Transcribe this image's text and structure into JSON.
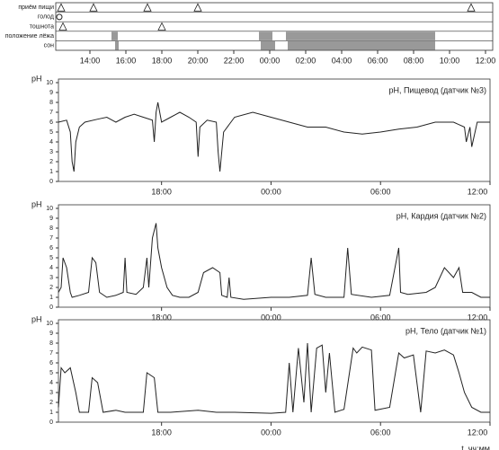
{
  "chart_data": [
    {
      "type": "timeline",
      "xlim": [
        12.1,
        36
      ],
      "xticks": [
        {
          "value": 14,
          "label": "14:00"
        },
        {
          "value": 16,
          "label": "16:00"
        },
        {
          "value": 18,
          "label": "18:00"
        },
        {
          "value": 20,
          "label": "20:00"
        },
        {
          "value": 22,
          "label": "22:00"
        },
        {
          "value": 24,
          "label": "00:00"
        },
        {
          "value": 26,
          "label": "02:00"
        },
        {
          "value": 28,
          "label": "04:00"
        },
        {
          "value": 30,
          "label": "06:00"
        },
        {
          "value": 32,
          "label": "08:00"
        },
        {
          "value": 34,
          "label": "10:00"
        },
        {
          "value": 36,
          "label": "12:00"
        }
      ],
      "series": [
        {
          "name": "приём пищи",
          "marker": "triangle",
          "x": [
            12.4,
            14.2,
            17.2,
            20.0,
            35.2
          ]
        },
        {
          "name": "голод",
          "marker": "circle",
          "x": [
            12.3
          ]
        },
        {
          "name": "тошнота",
          "marker": "triangle",
          "x": [
            12.5,
            18.0
          ]
        },
        {
          "name": "положение лёжа",
          "color": "#999999",
          "spans": [
            [
              15.2,
              15.55
            ],
            [
              23.4,
              24.15
            ],
            [
              24.9,
              33.2
            ]
          ]
        },
        {
          "name": "сон",
          "color": "#999999",
          "spans": [
            [
              15.4,
              15.6
            ],
            [
              23.5,
              24.3
            ],
            [
              25.0,
              33.2
            ]
          ]
        }
      ]
    },
    {
      "type": "line",
      "title": "pH, Пищевод (датчик №3)",
      "ylabel": "pH",
      "color": "#222222",
      "xlim": [
        12.35,
        36
      ],
      "ylim": [
        0,
        10
      ],
      "xticks": [
        {
          "value": 18,
          "label": "18:00"
        },
        {
          "value": 24,
          "label": "00:00"
        },
        {
          "value": 30,
          "label": "06:00"
        },
        {
          "value": 36,
          "label": "12:00"
        }
      ],
      "yticks": [
        0,
        1,
        2,
        3,
        4,
        5,
        6,
        7,
        8,
        9,
        10
      ],
      "x": [
        12.35,
        12.8,
        13.0,
        13.1,
        13.2,
        13.3,
        13.5,
        13.8,
        14.5,
        15.0,
        15.5,
        16.0,
        16.5,
        17.0,
        17.5,
        17.6,
        17.7,
        17.8,
        18.0,
        18.5,
        19.0,
        19.5,
        19.9,
        20.0,
        20.1,
        20.5,
        21.0,
        21.1,
        21.2,
        21.4,
        22.0,
        23.0,
        24.0,
        25.0,
        26.0,
        27.0,
        28.0,
        29.0,
        30.0,
        31.0,
        32.0,
        33.0,
        34.0,
        34.6,
        34.7,
        34.9,
        35.0,
        35.3,
        36.0
      ],
      "values": [
        6,
        6.2,
        5,
        2,
        1,
        4,
        5.5,
        6,
        6.3,
        6.5,
        6,
        6.5,
        6.8,
        6.5,
        6.2,
        4,
        7,
        8,
        6,
        6.5,
        7,
        6.5,
        6,
        2.5,
        5.5,
        6.2,
        6,
        3,
        1,
        5,
        6.5,
        7,
        6.5,
        6,
        5.5,
        5.5,
        5,
        4.8,
        5,
        5.3,
        5.5,
        6,
        6,
        5.5,
        4,
        5.5,
        3.5,
        6,
        6
      ]
    },
    {
      "type": "line",
      "title": "pH, Кардия (датчик №2)",
      "ylabel": "pH",
      "color": "#222222",
      "xlim": [
        12.35,
        36
      ],
      "ylim": [
        0,
        10
      ],
      "xticks": [
        {
          "value": 18,
          "label": "18:00"
        },
        {
          "value": 24,
          "label": "00:00"
        },
        {
          "value": 30,
          "label": "06:00"
        },
        {
          "value": 36,
          "label": "12:00"
        }
      ],
      "yticks": [
        0,
        1,
        2,
        3,
        4,
        5,
        6,
        7,
        8,
        9,
        10
      ],
      "x": [
        12.35,
        12.5,
        12.6,
        12.8,
        13.0,
        13.1,
        13.5,
        14.0,
        14.2,
        14.4,
        14.6,
        15.0,
        15.5,
        15.9,
        16.0,
        16.1,
        16.6,
        17.0,
        17.2,
        17.3,
        17.5,
        17.7,
        17.8,
        18.0,
        18.3,
        18.6,
        19.0,
        19.5,
        20.0,
        20.3,
        20.8,
        21.2,
        21.3,
        21.6,
        21.7,
        21.8,
        22.5,
        24.0,
        25.0,
        26.0,
        26.2,
        26.4,
        27.0,
        28.0,
        28.2,
        28.4,
        29.5,
        30.5,
        31.0,
        31.1,
        31.5,
        32.5,
        33.0,
        33.5,
        34.0,
        34.3,
        34.5,
        35.0,
        35.5,
        36.0
      ],
      "values": [
        1.5,
        2,
        5,
        4,
        1.5,
        1,
        1.2,
        1.5,
        5,
        4.5,
        1.5,
        1,
        1.2,
        1.5,
        5,
        1.5,
        1.3,
        2,
        5,
        2,
        7,
        8.5,
        6,
        4,
        2,
        1.2,
        1,
        1,
        1.5,
        3.5,
        4,
        3.5,
        1.2,
        1,
        3,
        1,
        0.8,
        1,
        1,
        1.2,
        5,
        1.3,
        1,
        1,
        6,
        1.3,
        1,
        1.2,
        6,
        1.5,
        1.3,
        1.5,
        2,
        4,
        3,
        4,
        1.5,
        1.5,
        1,
        1
      ]
    },
    {
      "type": "line",
      "title": "pH, Тело (датчик №1)",
      "ylabel": "pH",
      "xlabel": "t, чч:мм",
      "color": "#222222",
      "xlim": [
        12.35,
        36
      ],
      "ylim": [
        0,
        10
      ],
      "xticks": [
        {
          "value": 18,
          "label": "18:00"
        },
        {
          "value": 24,
          "label": "00:00"
        },
        {
          "value": 30,
          "label": "06:00"
        },
        {
          "value": 36,
          "label": "12:00"
        }
      ],
      "yticks": [
        0,
        1,
        2,
        3,
        4,
        5,
        6,
        7,
        8,
        9,
        10
      ],
      "x": [
        12.35,
        12.5,
        12.7,
        13.0,
        13.3,
        13.5,
        14.0,
        14.2,
        14.5,
        14.8,
        15.5,
        16.0,
        17.0,
        17.2,
        17.6,
        17.8,
        18.5,
        20.0,
        21.0,
        22.0,
        24.0,
        24.8,
        25.0,
        25.2,
        25.5,
        25.8,
        26.0,
        26.2,
        26.5,
        26.8,
        27.0,
        27.2,
        27.5,
        28.0,
        28.5,
        28.7,
        29.0,
        29.5,
        29.7,
        30.5,
        31.0,
        31.3,
        31.8,
        32.2,
        32.5,
        33.0,
        33.5,
        34.0,
        34.3,
        34.6,
        35.0,
        35.5,
        36.0
      ],
      "values": [
        1.5,
        5.5,
        5,
        5.5,
        3,
        1,
        1,
        4.5,
        4,
        1,
        1.2,
        1,
        1,
        5,
        4.5,
        1,
        1,
        1.2,
        1,
        1,
        0.9,
        1,
        6,
        1,
        7.5,
        2,
        8,
        1,
        7.5,
        7.8,
        3,
        7,
        1,
        1.3,
        7.5,
        7,
        7.6,
        7.3,
        1.2,
        1.5,
        7,
        6.5,
        6.8,
        1,
        7.2,
        7,
        7.3,
        6.8,
        5,
        3,
        1.5,
        1,
        1
      ]
    }
  ]
}
